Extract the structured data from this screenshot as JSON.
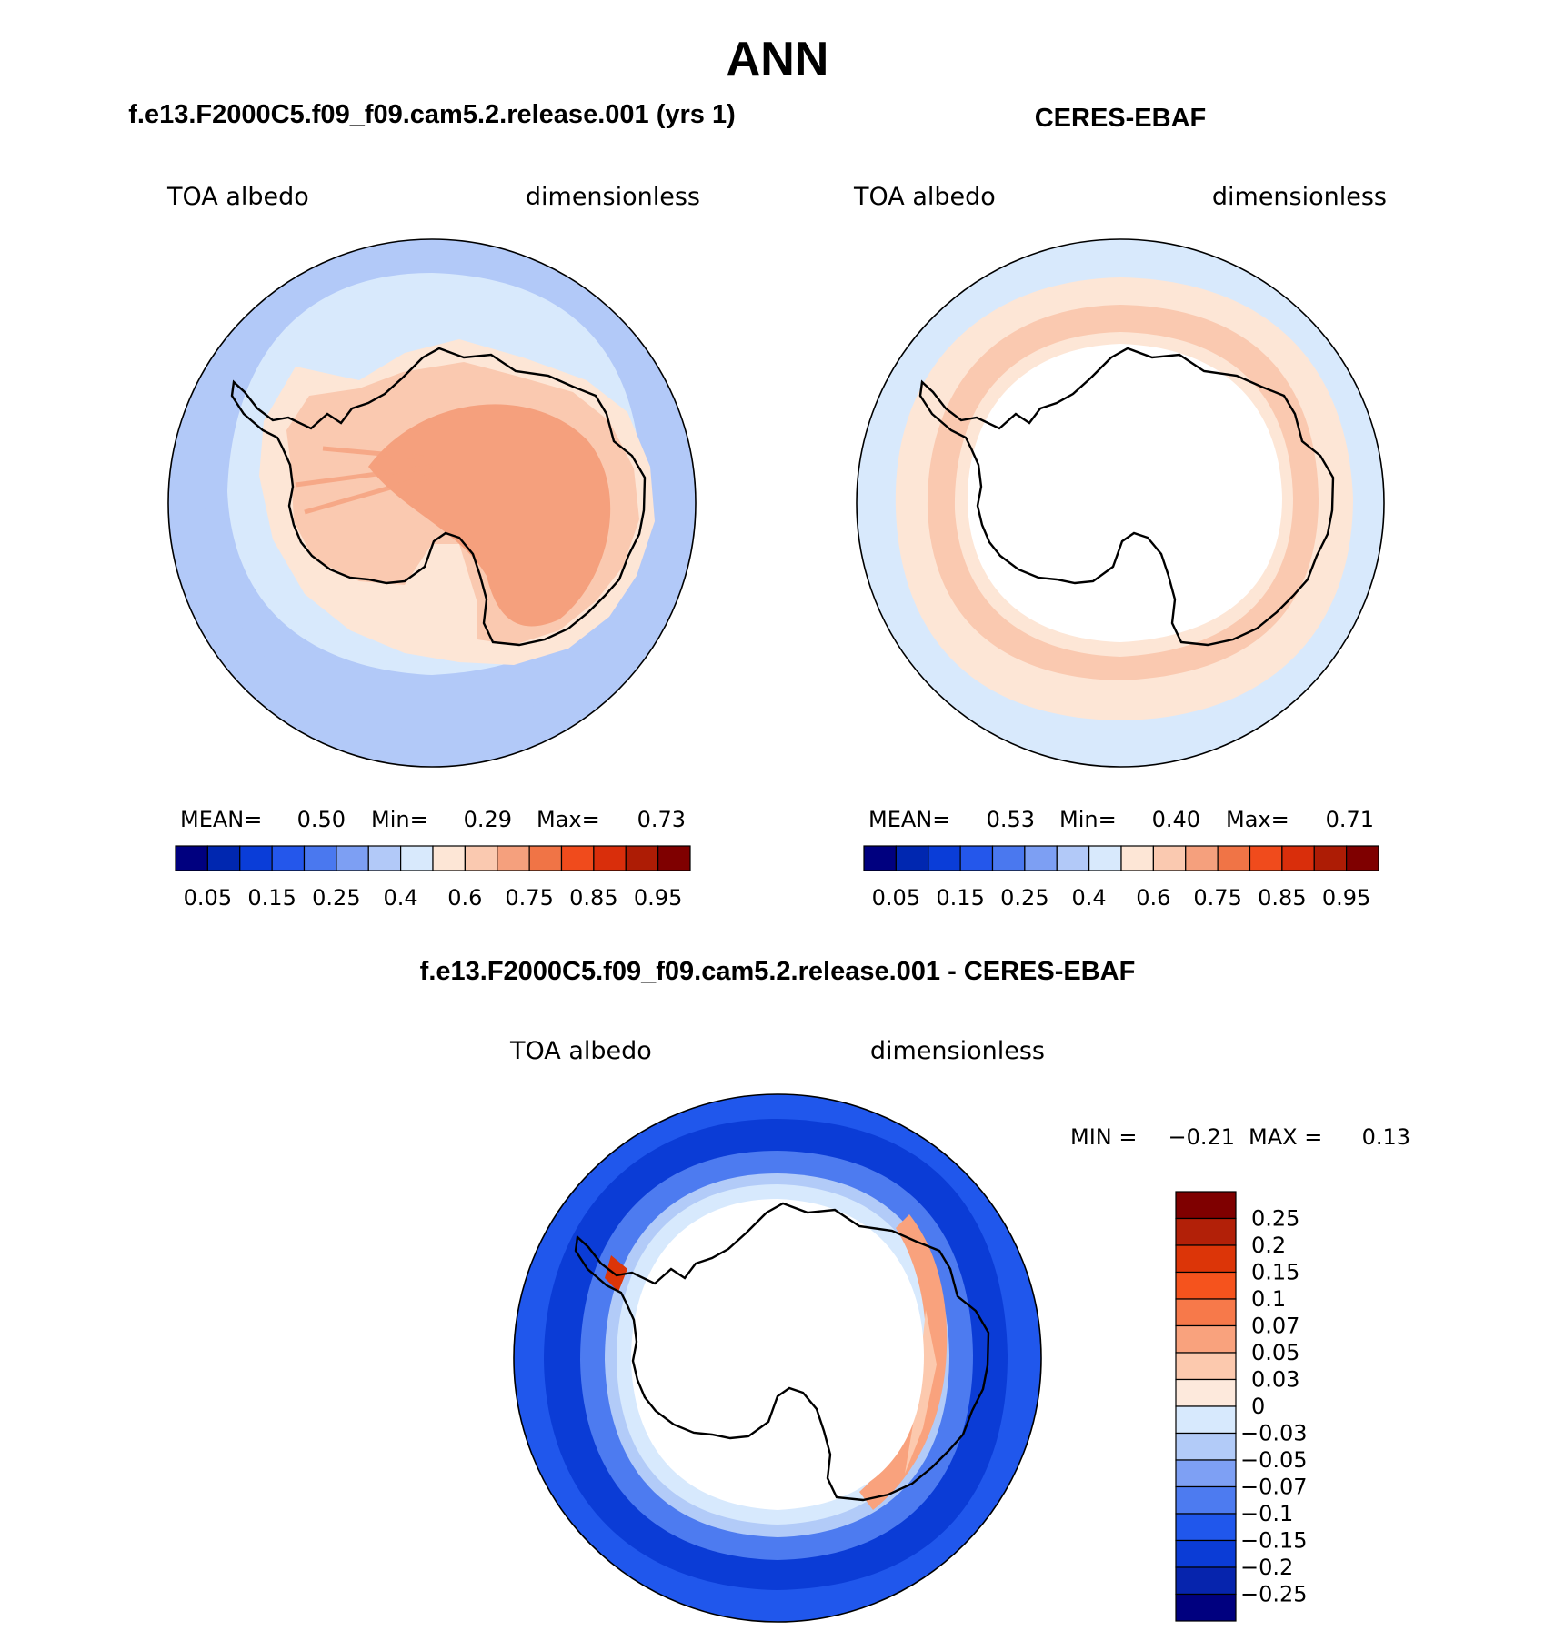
{
  "title": "ANN",
  "panels": [
    {
      "title": "f.e13.F2000C5.f09_f09.cam5.2.release.001 (yrs 1)",
      "variable": "TOA albedo",
      "units": "dimensionless",
      "stats": {
        "mean_label": "MEAN=",
        "mean": "0.50",
        "min_label": "Min=",
        "min": "0.29",
        "max_label": "Max=",
        "max": "0.73"
      }
    },
    {
      "title": "CERES-EBAF",
      "variable": "TOA albedo",
      "units": "dimensionless",
      "stats": {
        "mean_label": "MEAN=",
        "mean": "0.53",
        "min_label": "Min=",
        "min": "0.40",
        "max_label": "Max=",
        "max": "0.71"
      }
    },
    {
      "title": "f.e13.F2000C5.f09_f09.cam5.2.release.001 - CERES-EBAF",
      "variable": "TOA albedo",
      "units": "dimensionless",
      "stats": {
        "min_label": "MIN =",
        "min": "−0.21",
        "max_label": "MAX =",
        "max": "0.13"
      }
    }
  ],
  "chart_data": [
    {
      "type": "heatmap",
      "projection": "south polar stereographic",
      "title": "f.e13.F2000C5.f09_f09.cam5.2.release.001 (yrs 1)",
      "variable": "TOA albedo",
      "units": "dimensionless",
      "mean": 0.5,
      "min": 0.29,
      "max": 0.73,
      "colorbar": {
        "orientation": "horizontal",
        "levels": [
          0.05,
          0.1,
          0.15,
          0.2,
          0.25,
          0.3,
          0.4,
          0.5,
          0.6,
          0.7,
          0.75,
          0.8,
          0.85,
          0.9,
          0.95
        ],
        "tick_labels": [
          "0.05",
          "0.15",
          "0.25",
          "0.4",
          "0.6",
          "0.75",
          "0.85",
          "0.95"
        ],
        "colors": [
          "#00007f",
          "#0027b0",
          "#0a3dd8",
          "#2457eb",
          "#4a78ef",
          "#7d9ff3",
          "#b2c9f8",
          "#d8e9fc",
          "#fde6d6",
          "#fac9b0",
          "#f5a07d",
          "#f07446",
          "#f04b1c",
          "#d92e0b",
          "#ad1c05",
          "#7f0000"
        ]
      }
    },
    {
      "type": "heatmap",
      "projection": "south polar stereographic",
      "title": "CERES-EBAF",
      "variable": "TOA albedo",
      "units": "dimensionless",
      "mean": 0.53,
      "min": 0.4,
      "max": 0.71,
      "colorbar": {
        "orientation": "horizontal",
        "levels": [
          0.05,
          0.1,
          0.15,
          0.2,
          0.25,
          0.3,
          0.4,
          0.5,
          0.6,
          0.7,
          0.75,
          0.8,
          0.85,
          0.9,
          0.95
        ],
        "tick_labels": [
          "0.05",
          "0.15",
          "0.25",
          "0.4",
          "0.6",
          "0.75",
          "0.85",
          "0.95"
        ],
        "colors": [
          "#00007f",
          "#0027b0",
          "#0a3dd8",
          "#2457eb",
          "#4a78ef",
          "#7d9ff3",
          "#b2c9f8",
          "#d8e9fc",
          "#fde6d6",
          "#fac9b0",
          "#f5a07d",
          "#f07446",
          "#f04b1c",
          "#d92e0b",
          "#ad1c05",
          "#7f0000"
        ]
      }
    },
    {
      "type": "heatmap",
      "projection": "south polar stereographic",
      "title": "f.e13.F2000C5.f09_f09.cam5.2.release.001 - CERES-EBAF",
      "variable": "TOA albedo",
      "units": "dimensionless",
      "min": -0.21,
      "max": 0.13,
      "colorbar": {
        "orientation": "vertical",
        "levels": [
          0.25,
          0.2,
          0.15,
          0.1,
          0.07,
          0.05,
          0.03,
          0,
          -0.03,
          -0.05,
          -0.07,
          -0.1,
          -0.15,
          -0.2,
          -0.25
        ],
        "tick_labels": [
          "0.25",
          "0.2",
          "0.15",
          "0.1",
          "0.07",
          "0.05",
          "0.03",
          "0",
          "−0.03",
          "−0.05",
          "−0.07",
          "−0.1",
          "−0.15",
          "−0.2",
          "−0.25"
        ],
        "colors": [
          "#7f0000",
          "#b22008",
          "#dc3508",
          "#f5531d",
          "#f7794a",
          "#f9a27d",
          "#fcc9ae",
          "#fde9dc",
          "#d7e9fd",
          "#b2cbf8",
          "#7ea0f4",
          "#4d7bf0",
          "#2057ec",
          "#0b3cd6",
          "#0624ad",
          "#00007f"
        ]
      }
    }
  ]
}
